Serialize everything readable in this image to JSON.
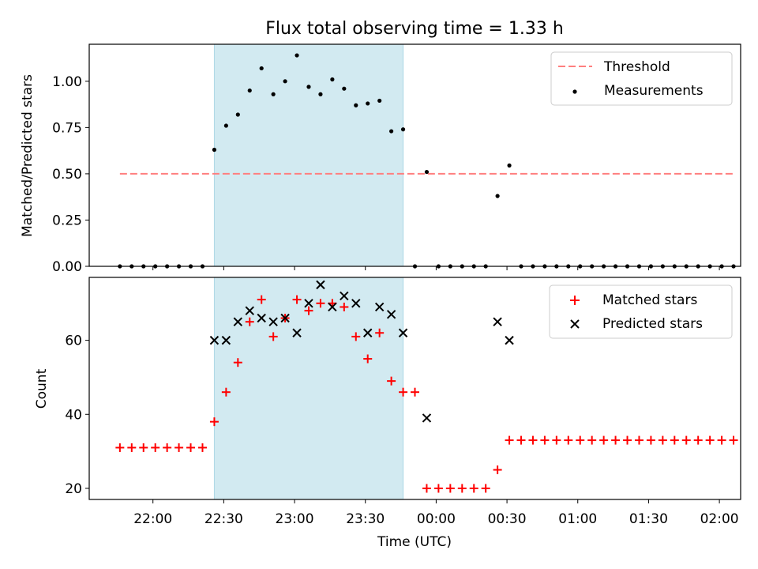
{
  "title": "Flux total observing time = 1.33 h",
  "xlabel": "Time (UTC)",
  "x_tick_labels": [
    "22:00",
    "22:30",
    "23:00",
    "23:30",
    "00:00",
    "00:30",
    "01:00",
    "01:30",
    "02:00"
  ],
  "colors": {
    "threshold": "#ff7f7f",
    "measurements": "#000000",
    "matched": "#ff0000",
    "predicted": "#000000",
    "highlight": "#add8e6"
  },
  "chart_data": [
    {
      "type": "scatter",
      "panel": "top",
      "ylabel": "Matched/Predicted stars",
      "x_axis": "time (UTC)",
      "xlim": [
        "21:33",
        "02:09"
      ],
      "ylim": [
        0,
        1.2
      ],
      "yticks": [
        0.0,
        0.25,
        0.5,
        0.75,
        1.0
      ],
      "y_tick_labels": [
        "0.00",
        "0.25",
        "0.50",
        "0.75",
        "1.00"
      ],
      "highlight_span": [
        "22:26",
        "23:46"
      ],
      "legend": {
        "placement": "top-right",
        "entries": [
          "Threshold",
          "Measurements"
        ]
      },
      "threshold": {
        "name": "Threshold",
        "y": 0.5,
        "x_range": [
          "21:46",
          "02:06"
        ]
      },
      "series": [
        {
          "name": "Measurements",
          "x": [
            "21:46",
            "21:51",
            "21:56",
            "22:01",
            "22:06",
            "22:11",
            "22:16",
            "22:21",
            "22:26",
            "22:31",
            "22:36",
            "22:41",
            "22:46",
            "22:51",
            "22:56",
            "23:01",
            "23:06",
            "23:11",
            "23:16",
            "23:21",
            "23:26",
            "23:31",
            "23:36",
            "23:41",
            "23:46",
            "23:51",
            "23:56",
            "00:01",
            "00:06",
            "00:11",
            "00:16",
            "00:21",
            "00:26",
            "00:31",
            "00:36",
            "00:41",
            "00:46",
            "00:51",
            "00:56",
            "01:01",
            "01:06",
            "01:11",
            "01:16",
            "01:21",
            "01:26",
            "01:31",
            "01:36",
            "01:41",
            "01:46",
            "01:51",
            "01:56",
            "02:01",
            "02:06"
          ],
          "y": [
            0,
            0,
            0,
            0,
            0,
            0,
            0,
            0,
            0.63,
            0.76,
            0.82,
            0.95,
            1.07,
            0.93,
            1.0,
            1.14,
            0.97,
            0.93,
            1.01,
            0.96,
            0.87,
            0.88,
            0.895,
            0.73,
            0.74,
            0,
            0.51,
            0,
            0,
            0,
            0,
            0,
            0.38,
            0.545,
            0,
            0,
            0,
            0,
            0,
            0,
            0,
            0,
            0,
            0,
            0,
            0,
            0,
            0,
            0,
            0,
            0,
            0,
            0
          ]
        }
      ]
    },
    {
      "type": "scatter",
      "panel": "bottom",
      "ylabel": "Count",
      "xlabel": "Time (UTC)",
      "x_axis": "time (UTC)",
      "xlim": [
        "21:33",
        "02:09"
      ],
      "ylim": [
        17,
        77
      ],
      "yticks": [
        20,
        40,
        60
      ],
      "y_tick_labels": [
        "20",
        "40",
        "60"
      ],
      "highlight_span": [
        "22:26",
        "23:46"
      ],
      "legend": {
        "placement": "top-right",
        "entries": [
          "Matched stars",
          "Predicted stars"
        ]
      },
      "series": [
        {
          "name": "Matched stars",
          "marker": "plus",
          "x": [
            "21:46",
            "21:51",
            "21:56",
            "22:01",
            "22:06",
            "22:11",
            "22:16",
            "22:21",
            "22:26",
            "22:31",
            "22:36",
            "22:41",
            "22:46",
            "22:51",
            "22:56",
            "23:01",
            "23:06",
            "23:11",
            "23:16",
            "23:21",
            "23:26",
            "23:31",
            "23:36",
            "23:41",
            "23:46",
            "23:51",
            "23:56",
            "00:01",
            "00:06",
            "00:11",
            "00:16",
            "00:21",
            "00:26",
            "00:31",
            "00:36",
            "00:41",
            "00:46",
            "00:51",
            "00:56",
            "01:01",
            "01:06",
            "01:11",
            "01:16",
            "01:21",
            "01:26",
            "01:31",
            "01:36",
            "01:41",
            "01:46",
            "01:51",
            "01:56",
            "02:01",
            "02:06"
          ],
          "y": [
            31,
            31,
            31,
            31,
            31,
            31,
            31,
            31,
            38,
            46,
            54,
            65,
            71,
            61,
            66,
            71,
            68,
            70,
            70,
            69,
            61,
            55,
            62,
            49,
            46,
            46,
            20,
            20,
            20,
            20,
            20,
            20,
            25,
            33,
            33,
            33,
            33,
            33,
            33,
            33,
            33,
            33,
            33,
            33,
            33,
            33,
            33,
            33,
            33,
            33,
            33,
            33,
            33
          ]
        },
        {
          "name": "Predicted stars",
          "marker": "x",
          "x": [
            "22:26",
            "22:31",
            "22:36",
            "22:41",
            "22:46",
            "22:51",
            "22:56",
            "23:01",
            "23:06",
            "23:11",
            "23:16",
            "23:21",
            "23:26",
            "23:31",
            "23:36",
            "23:41",
            "23:46",
            "23:56",
            "00:26",
            "00:31"
          ],
          "y": [
            60,
            60,
            65,
            68,
            66,
            65,
            66,
            62,
            70,
            75,
            69,
            72,
            70,
            62,
            69,
            67,
            62,
            39,
            65,
            60
          ]
        }
      ]
    }
  ]
}
